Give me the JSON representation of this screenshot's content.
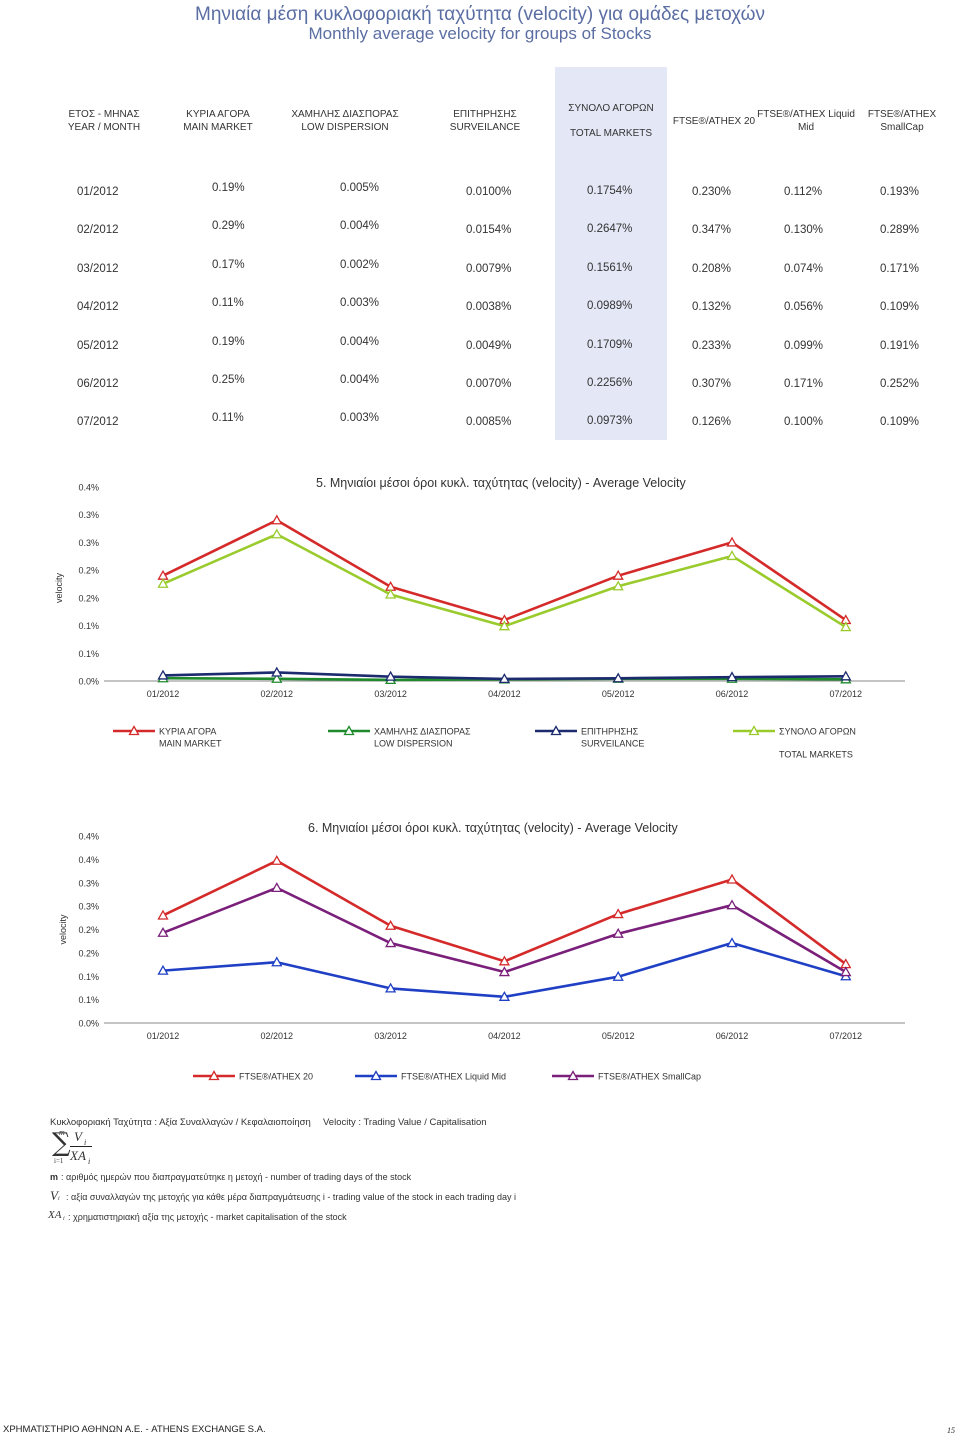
{
  "title": {
    "greek": "Μηνιαία μέση κυκλοφοριακή ταχύτητα (velocity) για ομάδες μετοχών",
    "english": "Monthly average velocity for groups of Stocks"
  },
  "table": {
    "headers": [
      {
        "greek": "ΕΤΟΣ - ΜΗΝΑΣ",
        "english": "YEAR / MONTH"
      },
      {
        "greek": "ΚΥΡΙΑ ΑΓΟΡΑ",
        "english": "MAIN MARKET"
      },
      {
        "greek": "ΧΑΜΗΛΗΣ ΔΙΑΣΠΟΡΑΣ",
        "english": "LOW DISPERSION"
      },
      {
        "greek": "ΕΠΙΤΗΡΗΣΗΣ",
        "english": "SURVEILANCE"
      },
      {
        "greek": "ΣΥΝΟΛΟ ΑΓΟΡΩΝ",
        "english": "TOTAL MARKETS"
      },
      {
        "greek": "FTSE®/ATHEX 20",
        "english": ""
      },
      {
        "greek": "FTSE®/ATHEX Liquid",
        "english": "Mid"
      },
      {
        "greek": "FTSE®/ATHEX",
        "english": "SmallCap"
      }
    ],
    "rows": [
      [
        "01/2012",
        "0.19%",
        "0.005%",
        "0.0100%",
        "0.1754%",
        "0.230%",
        "0.112%",
        "0.193%"
      ],
      [
        "02/2012",
        "0.29%",
        "0.004%",
        "0.0154%",
        "0.2647%",
        "0.347%",
        "0.130%",
        "0.289%"
      ],
      [
        "03/2012",
        "0.17%",
        "0.002%",
        "0.0079%",
        "0.1561%",
        "0.208%",
        "0.074%",
        "0.171%"
      ],
      [
        "04/2012",
        "0.11%",
        "0.003%",
        "0.0038%",
        "0.0989%",
        "0.132%",
        "0.056%",
        "0.109%"
      ],
      [
        "05/2012",
        "0.19%",
        "0.004%",
        "0.0049%",
        "0.1709%",
        "0.233%",
        "0.099%",
        "0.191%"
      ],
      [
        "06/2012",
        "0.25%",
        "0.004%",
        "0.0070%",
        "0.2256%",
        "0.307%",
        "0.171%",
        "0.252%"
      ],
      [
        "07/2012",
        "0.11%",
        "0.003%",
        "0.0085%",
        "0.0973%",
        "0.126%",
        "0.100%",
        "0.109%"
      ]
    ]
  },
  "chart_data": [
    {
      "type": "line",
      "title": "5. Μηνιαίοι μέσοι όροι κυκλ. ταχύτητας (velocity) - Average Velocity",
      "ylabel": "velocity",
      "xlabel": "",
      "categories": [
        "01/2012",
        "02/2012",
        "03/2012",
        "04/2012",
        "05/2012",
        "06/2012",
        "07/2012"
      ],
      "y_tick_labels": [
        "0.0%",
        "0.1%",
        "0.1%",
        "0.2%",
        "0.2%",
        "0.3%",
        "0.3%",
        "0.4%"
      ],
      "ylim": [
        0,
        0.35
      ],
      "series": [
        {
          "name_greek": "ΚΥΡΙΑ ΑΓΟΡΑ",
          "name_english": "MAIN MARKET",
          "color": "#d42a2a",
          "values": [
            0.19,
            0.29,
            0.17,
            0.11,
            0.19,
            0.25,
            0.11
          ]
        },
        {
          "name_greek": "ΧΑΜΗΛΗΣ ΔΙΑΣΠΟΡΑΣ",
          "name_english": "LOW DISPERSION",
          "color": "#1f8a2c",
          "values": [
            0.005,
            0.004,
            0.002,
            0.003,
            0.004,
            0.004,
            0.003
          ]
        },
        {
          "name_greek": "ΕΠΙΤΗΡΗΣΗΣ",
          "name_english": "SURVEILANCE",
          "color": "#1c2a6e",
          "values": [
            0.01,
            0.0154,
            0.0079,
            0.0038,
            0.0049,
            0.007,
            0.0085
          ]
        },
        {
          "name_greek": "ΣΥΝΟΛΟ ΑΓΟΡΩΝ",
          "name_english": "TOTAL MARKETS",
          "color": "#9acb2d",
          "values": [
            0.1754,
            0.2647,
            0.1561,
            0.0989,
            0.1709,
            0.2256,
            0.0973
          ]
        }
      ],
      "legend": "bottom"
    },
    {
      "type": "line",
      "title": "6. Μηνιαίοι μέσοι όροι κυκλ. ταχύτητας (velocity) - Average Velocity",
      "ylabel": "velocity",
      "xlabel": "",
      "categories": [
        "01/2012",
        "02/2012",
        "03/2012",
        "04/2012",
        "05/2012",
        "06/2012",
        "07/2012"
      ],
      "y_tick_labels": [
        "0.0%",
        "0.1%",
        "0.1%",
        "0.2%",
        "0.2%",
        "0.3%",
        "0.3%",
        "0.4%",
        "0.4%"
      ],
      "ylim": [
        0,
        0.4
      ],
      "series": [
        {
          "name_greek": "FTSE®/ATHEX 20",
          "name_english": "",
          "color": "#d42a2a",
          "values": [
            0.23,
            0.347,
            0.208,
            0.132,
            0.233,
            0.307,
            0.126
          ]
        },
        {
          "name_greek": "FTSE®/ATHEX Liquid Mid",
          "name_english": "",
          "color": "#1f3fc4",
          "values": [
            0.112,
            0.13,
            0.074,
            0.056,
            0.099,
            0.171,
            0.1
          ]
        },
        {
          "name_greek": "FTSE®/ATHEX SmallCap",
          "name_english": "",
          "color": "#7a1f7a",
          "values": [
            0.193,
            0.289,
            0.171,
            0.109,
            0.191,
            0.252,
            0.109
          ]
        }
      ],
      "legend": "bottom"
    }
  ],
  "formula": {
    "definition_greek": "Κυκλοφοριακή Ταχύτητα : Αξία Συναλλαγών / Κεφαλαιοποίηση",
    "definition_english": "Velocity : Trading Value / Capitalisation",
    "sum_upper": "m",
    "sum_lower": "i=1",
    "numerator": "V",
    "denominator": "XA",
    "index": "i",
    "m_symbol": "m",
    "m_text": ": αριθμός ημερών που διαπραγματεύτηκε η μετοχή - number of trading days of the stock",
    "v_symbol": "V",
    "v_text": ": αξία συναλλαγών της μετοχής για κάθε μέρα διαπραγμάτευσης i - trading value of the stock in each trading day i",
    "xa_symbol": "XA",
    "xa_text": ": χρηματιστηριακή αξία της μετοχής - market capitalisation of the stock"
  },
  "footer": {
    "text": "ΧΡΗΜΑΤΙΣΤΗΡΙΟ ΑΘΗΝΩΝ Α.Ε. - ATHENS EXCHANGE S.A.",
    "page": "15"
  }
}
